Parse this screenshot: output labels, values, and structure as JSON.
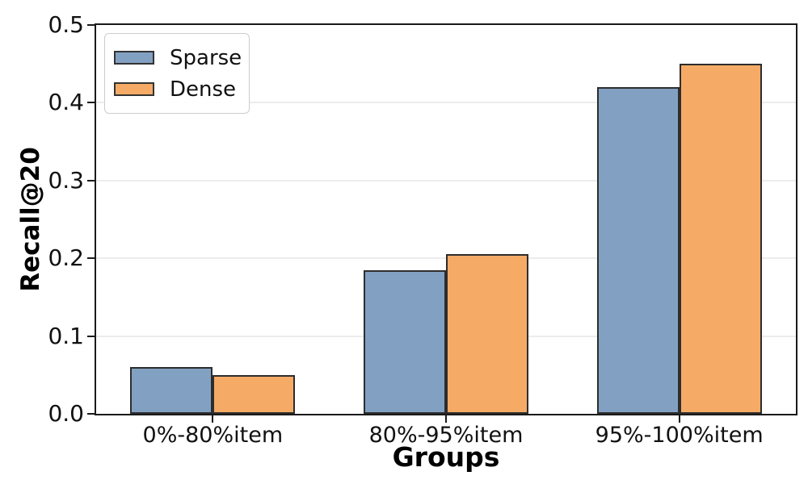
{
  "chart_data": {
    "type": "bar",
    "title": "",
    "xlabel": "Groups",
    "ylabel": "Recall@20",
    "categories": [
      "0%-80%item",
      "80%-95%item",
      "95%-100%item"
    ],
    "series": [
      {
        "name": "Sparse",
        "color": "#82A1C2",
        "values": [
          0.06,
          0.185,
          0.42
        ]
      },
      {
        "name": "Dense",
        "color": "#F5AB66",
        "values": [
          0.05,
          0.205,
          0.45
        ]
      }
    ],
    "ylim": [
      0.0,
      0.5
    ],
    "ytick_step": 0.1,
    "ytick_decimals": 1,
    "grid": "horizontal",
    "grid_color": "#ececec",
    "edge_color": "#2d2d2d",
    "spine_color": "#1a1a1a",
    "legend_position": "upper-left",
    "background_color": "#ffffff"
  }
}
